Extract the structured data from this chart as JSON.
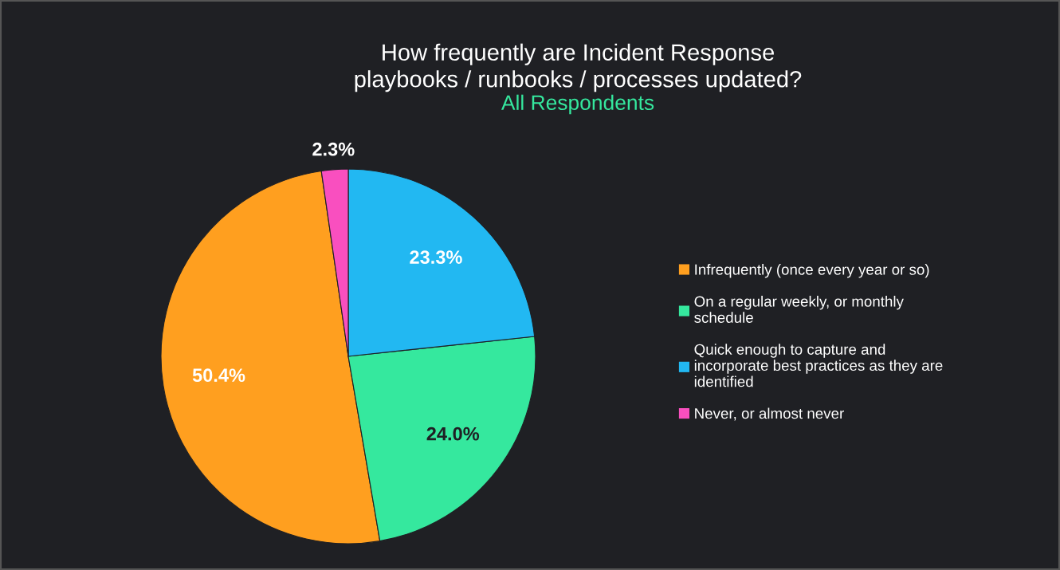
{
  "chart_data": {
    "type": "pie",
    "title": "How frequently are Incident Response\nplaybooks / runbooks / processes updated?",
    "subtitle": "All Respondents",
    "categories": [
      "Infrequently (once every year or so)",
      "On a regular weekly, or monthly\nschedule",
      "Quick enough to capture and\nincorporate best practices as they are\nidentified",
      "Never, or almost never"
    ],
    "values": [
      50.4,
      24.0,
      23.3,
      2.3
    ],
    "colors": [
      "#ff9f1f",
      "#35e89e",
      "#22b8f2",
      "#f94fbf"
    ],
    "value_labels": [
      "50.4%",
      "24.0%",
      "23.3%",
      "2.3%"
    ],
    "legend": "right"
  }
}
